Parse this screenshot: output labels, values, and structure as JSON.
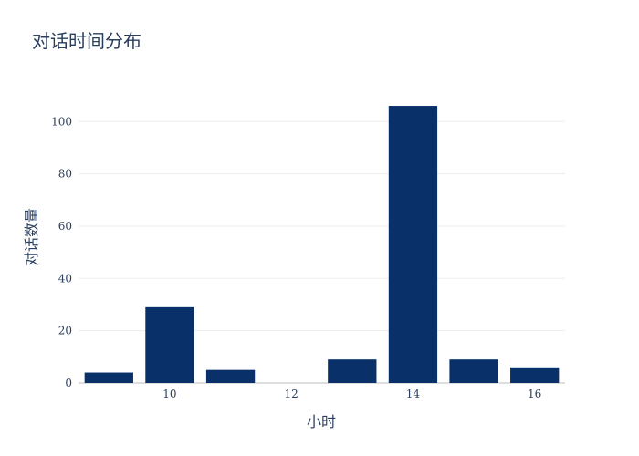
{
  "chart_data": {
    "type": "bar",
    "title": "对话时间分布",
    "xlabel": "小时",
    "ylabel": "对话数量",
    "x": [
      9,
      10,
      11,
      12,
      13,
      14,
      15,
      16
    ],
    "values": [
      4,
      29,
      5,
      0,
      9,
      106,
      9,
      6
    ],
    "xlim": [
      8.5,
      16.5
    ],
    "ylim": [
      0,
      111.6
    ],
    "xticks": [
      10,
      12,
      14,
      16
    ],
    "yticks": [
      0,
      20,
      40,
      60,
      80,
      100
    ],
    "grid": true,
    "legend": "none",
    "bar_color": "#0a3069"
  }
}
